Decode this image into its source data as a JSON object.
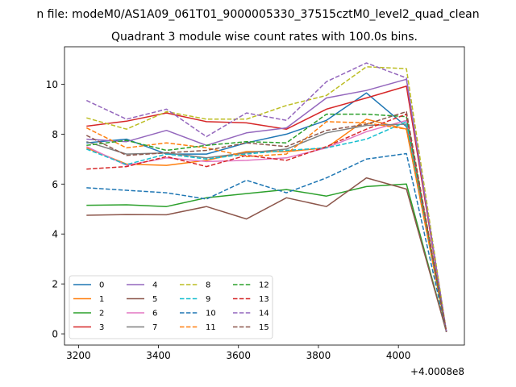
{
  "chart_data": {
    "type": "line",
    "suptitle": "n file: modeM0/AS1A09_061T01_9000005330_37515cztM0_level2_quad_clean",
    "title": "Quadrant 3 module wise count rates with 100.0s bins.",
    "xlabel": "",
    "ylabel": "",
    "x_offset_label": "+4.0008e8",
    "x": [
      3220,
      3320,
      3420,
      3520,
      3620,
      3720,
      3820,
      3920,
      4020,
      4120
    ],
    "xlim": [
      3165,
      4165
    ],
    "ylim": [
      -0.45,
      11.5
    ],
    "xticks": [
      3200,
      3400,
      3600,
      3800,
      4000
    ],
    "yticks": [
      0,
      2,
      4,
      6,
      8,
      10
    ],
    "grid": false,
    "legend_position": "lower-left",
    "legend_columns": 4,
    "series": [
      {
        "name": "0",
        "color": "#1f77b4",
        "dash": "solid",
        "values": [
          7.65,
          7.8,
          7.2,
          7.2,
          7.65,
          8.0,
          8.55,
          9.65,
          8.3,
          0.08
        ]
      },
      {
        "name": "1",
        "color": "#ff7f0e",
        "dash": "solid",
        "values": [
          7.45,
          6.8,
          6.75,
          6.95,
          7.3,
          7.3,
          7.45,
          8.6,
          8.2,
          0.08
        ]
      },
      {
        "name": "2",
        "color": "#2ca02c",
        "dash": "solid",
        "values": [
          5.15,
          5.17,
          5.1,
          5.45,
          5.62,
          5.78,
          5.52,
          5.9,
          6.0,
          0.08
        ]
      },
      {
        "name": "3",
        "color": "#d62728",
        "dash": "solid",
        "values": [
          8.32,
          8.52,
          8.85,
          8.5,
          8.45,
          8.2,
          9.0,
          9.45,
          9.92,
          0.08
        ]
      },
      {
        "name": "4",
        "color": "#9467bd",
        "dash": "solid",
        "values": [
          7.8,
          7.7,
          8.15,
          7.55,
          8.05,
          8.25,
          9.45,
          9.75,
          10.2,
          0.08
        ]
      },
      {
        "name": "5",
        "color": "#8c564b",
        "dash": "solid",
        "values": [
          4.75,
          4.78,
          4.77,
          5.1,
          4.6,
          5.45,
          5.1,
          6.25,
          5.8,
          0.08
        ]
      },
      {
        "name": "6",
        "color": "#e377c2",
        "dash": "solid",
        "values": [
          7.5,
          6.75,
          7.05,
          6.9,
          6.95,
          7.05,
          7.45,
          8.1,
          8.55,
          0.08
        ]
      },
      {
        "name": "7",
        "color": "#7f7f7f",
        "dash": "solid",
        "values": [
          7.7,
          7.2,
          7.25,
          7.05,
          7.25,
          7.4,
          8.05,
          8.35,
          8.4,
          0.08
        ]
      },
      {
        "name": "8",
        "color": "#bcbd22",
        "dash": "dashed",
        "values": [
          8.65,
          8.2,
          8.9,
          8.6,
          8.6,
          9.15,
          9.55,
          10.7,
          10.62,
          0.08
        ]
      },
      {
        "name": "9",
        "color": "#17becf",
        "dash": "dashed",
        "values": [
          7.4,
          6.78,
          7.2,
          7.0,
          7.2,
          7.35,
          7.45,
          7.8,
          8.5,
          0.08
        ]
      },
      {
        "name": "10",
        "color": "#1f77b4",
        "dash": "dashed",
        "values": [
          5.85,
          5.75,
          5.65,
          5.4,
          6.15,
          5.65,
          6.25,
          7.0,
          7.22,
          0.08
        ]
      },
      {
        "name": "11",
        "color": "#ff7f0e",
        "dash": "dashed",
        "values": [
          8.25,
          7.45,
          7.65,
          7.45,
          7.1,
          7.2,
          8.5,
          8.45,
          8.2,
          0.08
        ]
      },
      {
        "name": "12",
        "color": "#2ca02c",
        "dash": "dashed",
        "values": [
          7.55,
          7.75,
          7.35,
          7.55,
          7.7,
          7.65,
          8.8,
          8.8,
          8.7,
          0.08
        ]
      },
      {
        "name": "13",
        "color": "#d62728",
        "dash": "dashed",
        "values": [
          6.6,
          6.7,
          7.1,
          6.7,
          7.15,
          6.95,
          7.5,
          8.2,
          8.8,
          0.08
        ]
      },
      {
        "name": "14",
        "color": "#9467bd",
        "dash": "dashed",
        "values": [
          9.35,
          8.6,
          9.0,
          7.9,
          8.85,
          8.55,
          10.1,
          10.85,
          10.25,
          0.08
        ]
      },
      {
        "name": "15",
        "color": "#8c564b",
        "dash": "dashed",
        "values": [
          7.95,
          7.15,
          7.25,
          7.35,
          7.65,
          7.5,
          8.15,
          8.4,
          8.9,
          0.08
        ]
      }
    ]
  }
}
